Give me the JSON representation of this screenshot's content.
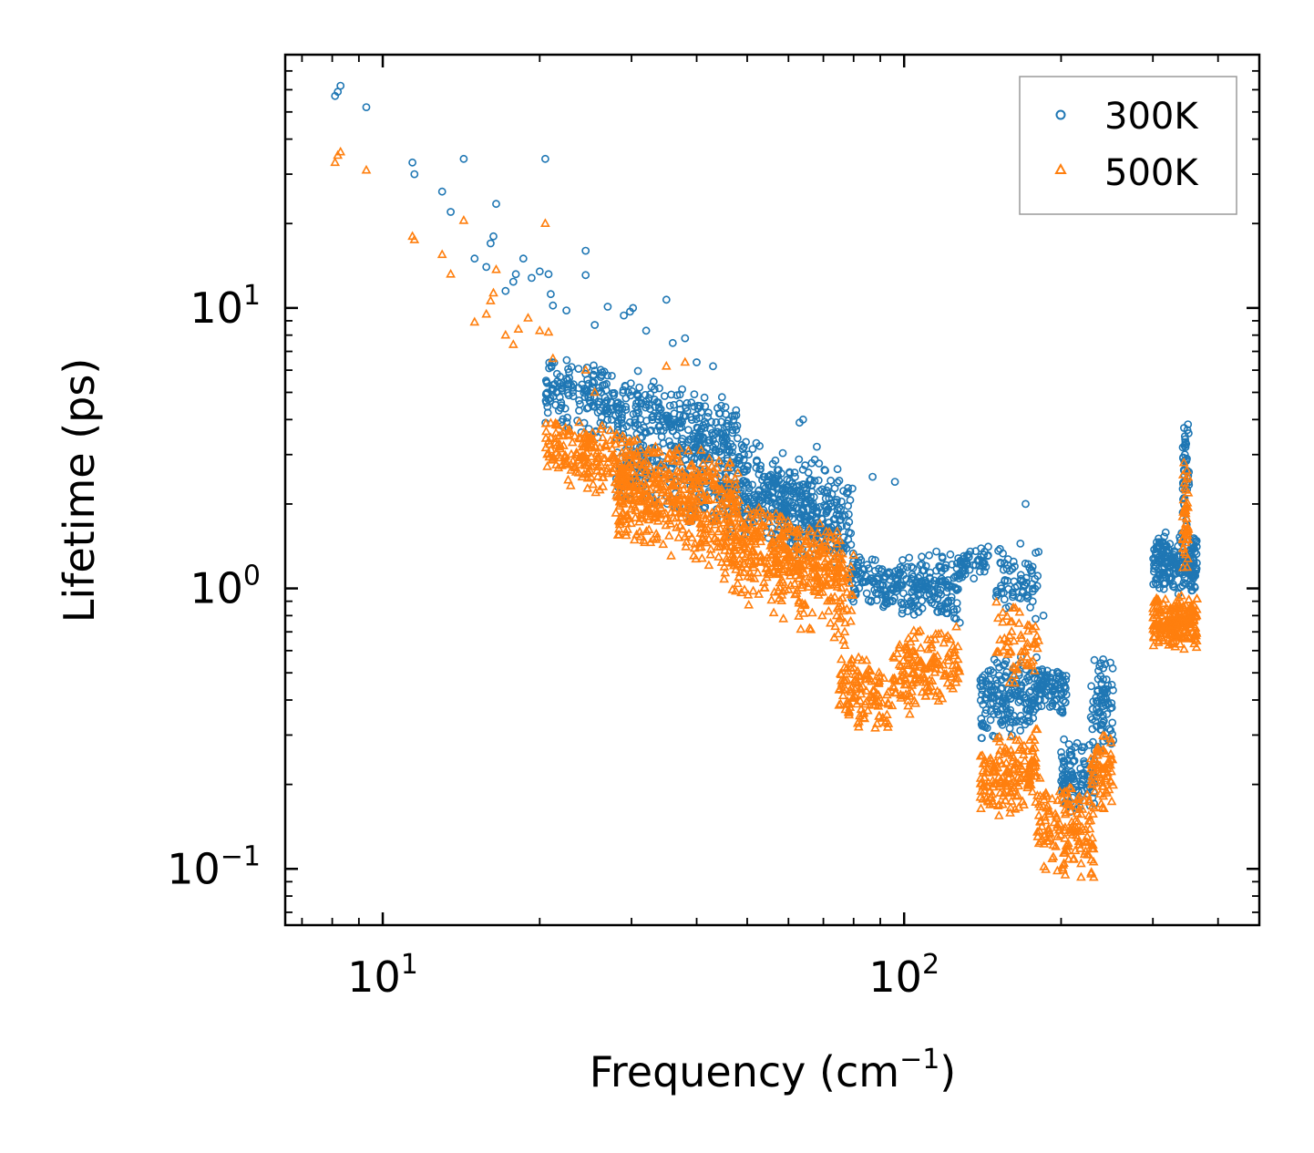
{
  "chart_data": {
    "type": "scatter",
    "title": "",
    "xlabel": "Frequency (cm",
    "xlabel_sup": "−1",
    "xlabel_tail": ")",
    "ylabel": "Lifetime (ps)",
    "xscale": "log",
    "yscale": "log",
    "xlim": [
      6.5,
      480
    ],
    "ylim": [
      0.063,
      80
    ],
    "x_ticks": [
      {
        "base": "10",
        "exp": "1",
        "value": 10
      },
      {
        "base": "10",
        "exp": "2",
        "value": 100
      }
    ],
    "y_ticks": [
      {
        "base": "10",
        "exp": "−1",
        "value": 0.1
      },
      {
        "base": "10",
        "exp": "0",
        "value": 1
      },
      {
        "base": "10",
        "exp": "1",
        "value": 10
      }
    ],
    "legend_position": "top-right",
    "series": [
      {
        "name": "300K",
        "marker": "circle",
        "color": "#1f77b4",
        "points": [
          [
            8.1,
            57
          ],
          [
            8.2,
            59
          ],
          [
            8.3,
            62
          ],
          [
            9.3,
            52
          ],
          [
            11.4,
            33
          ],
          [
            11.5,
            30
          ],
          [
            13.0,
            26
          ],
          [
            13.5,
            22
          ],
          [
            14.3,
            34
          ],
          [
            15.0,
            15
          ],
          [
            15.8,
            14
          ],
          [
            16.1,
            17
          ],
          [
            16.3,
            18
          ],
          [
            16.5,
            23.5
          ],
          [
            17.2,
            11.5
          ],
          [
            17.8,
            12.4
          ],
          [
            18.0,
            13.2
          ],
          [
            18.6,
            15
          ],
          [
            19.3,
            12.8
          ],
          [
            20.0,
            13.5
          ],
          [
            20.5,
            34
          ],
          [
            20.8,
            13.2
          ],
          [
            21.0,
            11.2
          ],
          [
            21.2,
            10.2
          ],
          [
            22.5,
            9.8
          ],
          [
            24.5,
            16
          ],
          [
            24.5,
            13.1
          ],
          [
            25.5,
            8.7
          ],
          [
            27.0,
            10.1
          ],
          [
            29.0,
            9.4
          ],
          [
            29.8,
            9.7
          ],
          [
            30.2,
            10
          ],
          [
            32.0,
            8.3
          ],
          [
            35.0,
            10.7
          ],
          [
            36.0,
            7.5
          ],
          [
            38.0,
            7.8
          ],
          [
            40.0,
            6.4
          ],
          [
            43.0,
            6.2
          ],
          [
            63.0,
            3.9
          ],
          [
            64.0,
            4.0
          ],
          [
            68.0,
            3.2
          ],
          [
            87.0,
            2.5
          ],
          [
            96.0,
            2.4
          ],
          [
            171.0,
            2.0
          ],
          [
            185.0,
            0.8
          ]
        ],
        "clusters": [
          {
            "x": [
              20.5,
              48
            ],
            "y": [
              3.0,
              6.0
            ],
            "slope": -0.55,
            "n": 420
          },
          {
            "x": [
              28,
              76
            ],
            "y": [
              1.5,
              3.3
            ],
            "slope": -0.55,
            "n": 420
          },
          {
            "x": [
              45,
              80
            ],
            "y": [
              1.3,
              3.2
            ],
            "slope": -0.6,
            "n": 260
          },
          {
            "x": [
              78,
              98
            ],
            "y": [
              0.85,
              1.3
            ],
            "slope": -0.3,
            "n": 110
          },
          {
            "x": [
              98,
              128
            ],
            "y": [
              0.75,
              1.4
            ],
            "slope": -0.2,
            "n": 160
          },
          {
            "x": [
              128,
              145
            ],
            "y": [
              1.05,
              1.45
            ],
            "slope": 0.2,
            "n": 45
          },
          {
            "x": [
              140,
              180
            ],
            "y": [
              0.28,
              0.6
            ],
            "slope": 0.3,
            "n": 180
          },
          {
            "x": [
              150,
              182
            ],
            "y": [
              0.75,
              1.5
            ],
            "slope": 0.1,
            "n": 70
          },
          {
            "x": [
              180,
              205
            ],
            "y": [
              0.35,
              0.55
            ],
            "slope": -0.5,
            "n": 90
          },
          {
            "x": [
              200,
              232
            ],
            "y": [
              0.15,
              0.3
            ],
            "slope": 0,
            "n": 110
          },
          {
            "x": [
              228,
              252
            ],
            "y": [
              0.25,
              0.58
            ],
            "slope": 0,
            "n": 80
          },
          {
            "x": [
              300,
              365
            ],
            "y": [
              0.95,
              1.6
            ],
            "slope": 0,
            "n": 210
          },
          {
            "x": [
              342,
              352
            ],
            "y": [
              1.6,
              5.0
            ],
            "slope": 0,
            "n": 45
          }
        ]
      },
      {
        "name": "500K",
        "marker": "triangle",
        "color": "#ff7f0e",
        "points": [
          [
            8.1,
            33
          ],
          [
            8.2,
            35
          ],
          [
            8.3,
            36
          ],
          [
            9.3,
            31
          ],
          [
            11.4,
            18
          ],
          [
            11.5,
            17.5
          ],
          [
            13.0,
            15.5
          ],
          [
            13.5,
            13.2
          ],
          [
            14.3,
            20.5
          ],
          [
            15.0,
            8.9
          ],
          [
            15.8,
            9.5
          ],
          [
            16.1,
            10.6
          ],
          [
            16.3,
            11.3
          ],
          [
            16.5,
            13.7
          ],
          [
            17.2,
            8.0
          ],
          [
            17.8,
            7.4
          ],
          [
            18.2,
            8.4
          ],
          [
            19.0,
            9.2
          ],
          [
            20.0,
            8.3
          ],
          [
            20.5,
            20
          ],
          [
            20.8,
            8.2
          ],
          [
            21.2,
            6.6
          ],
          [
            24.5,
            6.0
          ],
          [
            25.5,
            5.0
          ],
          [
            35.0,
            6.2
          ],
          [
            38.0,
            6.4
          ]
        ],
        "clusters": [
          {
            "x": [
              20.5,
              48
            ],
            "y": [
              1.9,
              3.6
            ],
            "slope": -0.5,
            "n": 420
          },
          {
            "x": [
              28,
              76
            ],
            "y": [
              1.1,
              2.2
            ],
            "slope": -0.5,
            "n": 420
          },
          {
            "x": [
              45,
              80
            ],
            "y": [
              0.7,
              1.9
            ],
            "slope": -0.7,
            "n": 260
          },
          {
            "x": [
              75,
              95
            ],
            "y": [
              0.3,
              0.6
            ],
            "slope": -0.6,
            "n": 120
          },
          {
            "x": [
              95,
              128
            ],
            "y": [
              0.35,
              0.75
            ],
            "slope": 0.3,
            "n": 160
          },
          {
            "x": [
              140,
              180
            ],
            "y": [
              0.15,
              0.32
            ],
            "slope": 0.4,
            "n": 180
          },
          {
            "x": [
              150,
              182
            ],
            "y": [
              0.45,
              0.95
            ],
            "slope": 0.1,
            "n": 60
          },
          {
            "x": [
              180,
              232
            ],
            "y": [
              0.09,
              0.22
            ],
            "slope": -0.2,
            "n": 160
          },
          {
            "x": [
              228,
              252
            ],
            "y": [
              0.16,
              0.32
            ],
            "slope": 0,
            "n": 70
          },
          {
            "x": [
              300,
              365
            ],
            "y": [
              0.6,
              0.95
            ],
            "slope": 0,
            "n": 210
          },
          {
            "x": [
              342,
              352
            ],
            "y": [
              1.0,
              3.0
            ],
            "slope": 0,
            "n": 45
          }
        ]
      }
    ]
  }
}
